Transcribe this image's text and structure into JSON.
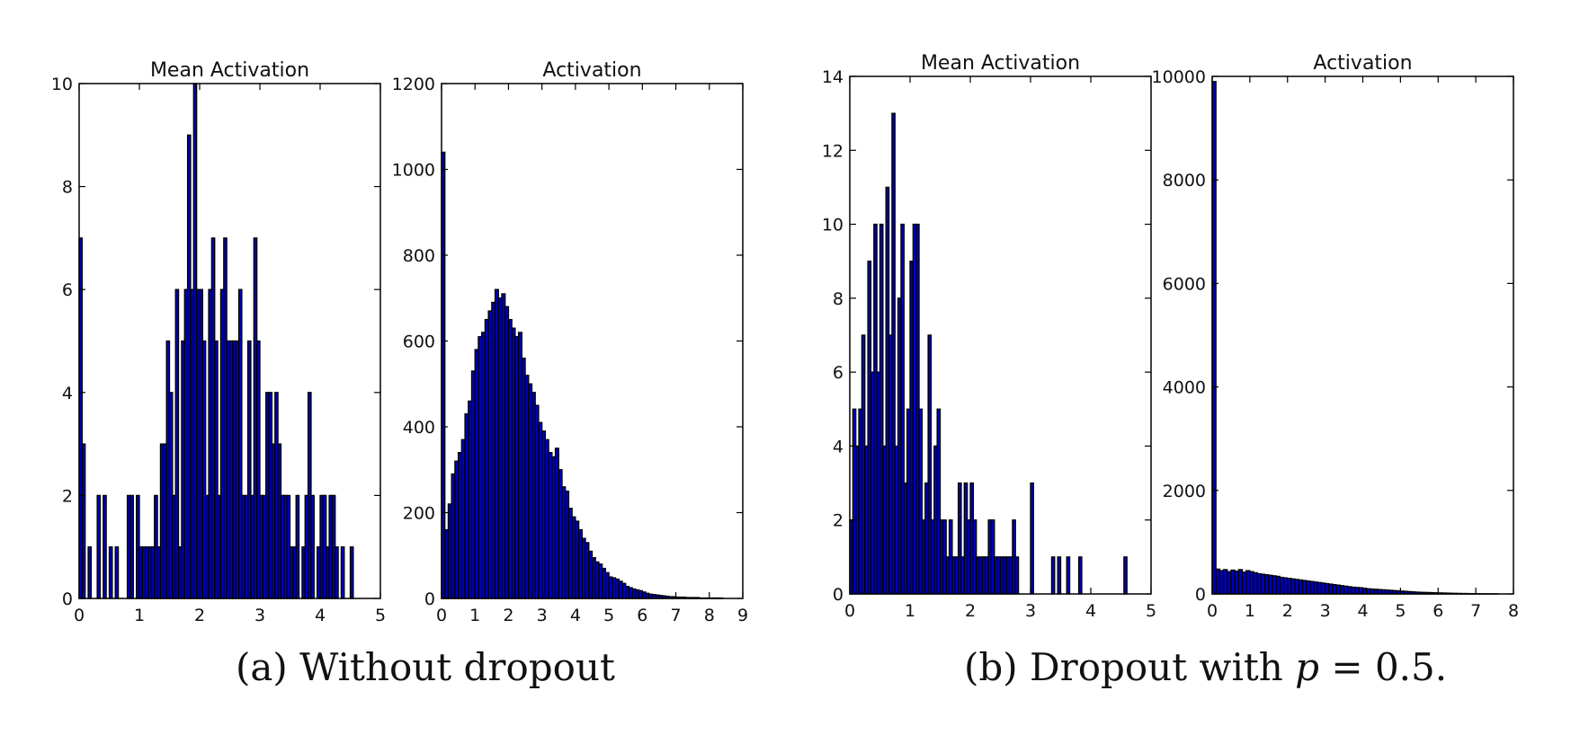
{
  "captions": {
    "a": "(a) Without dropout",
    "b_prefix": "(b) Dropout with ",
    "b_var": "p",
    "b_suffix": " = 0.5."
  },
  "colors": {
    "bar_fill": "#0000b8",
    "bar_edge": "#000000",
    "axes": "#000000"
  },
  "chart_data": [
    {
      "type": "bar",
      "title": "Mean Activation",
      "xlim": [
        0,
        5
      ],
      "ylim": [
        0,
        10
      ],
      "xticks": [
        0,
        1,
        2,
        3,
        4,
        5
      ],
      "yticks": [
        0,
        2,
        4,
        6,
        8,
        10
      ],
      "bin_width": 0.05,
      "x": [
        0.0,
        0.05,
        0.15,
        0.3,
        0.4,
        0.5,
        0.6,
        0.8,
        0.85,
        0.95,
        1.0,
        1.05,
        1.1,
        1.15,
        1.2,
        1.25,
        1.3,
        1.35,
        1.4,
        1.45,
        1.5,
        1.55,
        1.6,
        1.65,
        1.7,
        1.75,
        1.8,
        1.85,
        1.9,
        1.95,
        2.0,
        2.05,
        2.1,
        2.15,
        2.2,
        2.25,
        2.3,
        2.35,
        2.4,
        2.45,
        2.5,
        2.55,
        2.6,
        2.65,
        2.7,
        2.75,
        2.8,
        2.85,
        2.9,
        2.95,
        3.0,
        3.05,
        3.1,
        3.15,
        3.2,
        3.25,
        3.3,
        3.35,
        3.4,
        3.45,
        3.5,
        3.55,
        3.6,
        3.7,
        3.75,
        3.8,
        3.85,
        3.95,
        4.0,
        4.05,
        4.1,
        4.15,
        4.2,
        4.25,
        4.35,
        4.5
      ],
      "values": [
        7,
        3,
        1,
        2,
        2,
        1,
        1,
        2,
        2,
        2,
        1,
        1,
        1,
        1,
        1,
        2,
        1,
        3,
        3,
        5,
        4,
        2,
        6,
        1,
        5,
        6,
        9,
        6,
        10,
        6,
        6,
        5,
        2,
        6,
        7,
        5,
        2,
        6,
        7,
        5,
        5,
        5,
        5,
        6,
        2,
        2,
        5,
        2,
        7,
        5,
        2,
        2,
        4,
        4,
        3,
        4,
        3,
        2,
        2,
        2,
        1,
        1,
        2,
        1,
        2,
        4,
        2,
        1,
        2,
        2,
        1,
        2,
        2,
        1,
        1,
        1
      ]
    },
    {
      "type": "bar",
      "title": "Activation",
      "xlim": [
        0,
        9
      ],
      "ylim": [
        0,
        1200
      ],
      "xticks": [
        0,
        1,
        2,
        3,
        4,
        5,
        6,
        7,
        8,
        9
      ],
      "yticks": [
        0,
        200,
        400,
        600,
        800,
        1000,
        1200
      ],
      "bin_width": 0.1,
      "x": [
        0.0,
        0.1,
        0.2,
        0.3,
        0.4,
        0.5,
        0.6,
        0.7,
        0.8,
        0.9,
        1.0,
        1.1,
        1.2,
        1.3,
        1.4,
        1.5,
        1.6,
        1.7,
        1.8,
        1.9,
        2.0,
        2.1,
        2.2,
        2.3,
        2.4,
        2.5,
        2.6,
        2.7,
        2.8,
        2.9,
        3.0,
        3.1,
        3.2,
        3.3,
        3.4,
        3.5,
        3.6,
        3.7,
        3.8,
        3.9,
        4.0,
        4.1,
        4.2,
        4.3,
        4.4,
        4.5,
        4.6,
        4.7,
        4.8,
        4.9,
        5.0,
        5.1,
        5.2,
        5.3,
        5.4,
        5.5,
        5.6,
        5.7,
        5.8,
        5.9,
        6.0,
        6.1,
        6.2,
        6.3,
        6.4,
        6.5,
        6.6,
        6.7,
        6.8,
        6.9,
        7.0,
        7.1,
        7.2,
        7.3,
        7.4,
        7.5,
        7.6,
        7.7,
        7.8,
        7.9,
        8.0,
        8.1,
        8.2,
        8.3
      ],
      "values": [
        1040,
        160,
        220,
        290,
        320,
        340,
        370,
        430,
        460,
        530,
        580,
        610,
        620,
        650,
        670,
        690,
        720,
        700,
        710,
        680,
        650,
        630,
        610,
        620,
        560,
        520,
        500,
        480,
        450,
        410,
        390,
        370,
        340,
        330,
        350,
        300,
        260,
        250,
        210,
        190,
        180,
        160,
        140,
        130,
        110,
        95,
        85,
        80,
        70,
        60,
        50,
        48,
        45,
        40,
        35,
        28,
        25,
        22,
        20,
        18,
        15,
        12,
        10,
        9,
        8,
        7,
        6,
        5,
        4,
        4,
        3,
        3,
        3,
        2,
        2,
        2,
        2,
        1,
        1,
        1,
        1,
        1,
        1,
        1
      ]
    },
    {
      "type": "bar",
      "title": "Mean Activation",
      "xlim": [
        0,
        5
      ],
      "ylim": [
        0,
        14
      ],
      "xticks": [
        0,
        1,
        2,
        3,
        4,
        5
      ],
      "yticks": [
        0,
        2,
        4,
        6,
        8,
        10,
        12,
        14
      ],
      "bin_width": 0.05,
      "x": [
        0.0,
        0.05,
        0.1,
        0.15,
        0.2,
        0.25,
        0.3,
        0.35,
        0.4,
        0.45,
        0.5,
        0.55,
        0.6,
        0.65,
        0.7,
        0.75,
        0.8,
        0.85,
        0.9,
        0.95,
        1.0,
        1.05,
        1.1,
        1.15,
        1.2,
        1.25,
        1.3,
        1.35,
        1.4,
        1.45,
        1.5,
        1.55,
        1.6,
        1.65,
        1.7,
        1.75,
        1.8,
        1.85,
        1.9,
        1.95,
        2.0,
        2.05,
        2.1,
        2.15,
        2.2,
        2.25,
        2.3,
        2.35,
        2.4,
        2.45,
        2.5,
        2.55,
        2.6,
        2.65,
        2.7,
        2.75,
        3.0,
        3.35,
        3.45,
        3.6,
        3.8,
        4.55
      ],
      "values": [
        2,
        5,
        4,
        5,
        7,
        4,
        9,
        6,
        10,
        6,
        10,
        4,
        11,
        7,
        13,
        4,
        8,
        10,
        3,
        5,
        9,
        10,
        10,
        5,
        2,
        3,
        7,
        2,
        4,
        5,
        2,
        2,
        1,
        2,
        1,
        1,
        3,
        1,
        3,
        2,
        3,
        2,
        1,
        1,
        1,
        1,
        2,
        2,
        1,
        1,
        1,
        1,
        1,
        1,
        2,
        1,
        3,
        1,
        1,
        1,
        1,
        1
      ]
    },
    {
      "type": "bar",
      "title": "Activation",
      "xlim": [
        0,
        8
      ],
      "ylim": [
        0,
        10000
      ],
      "xticks": [
        0,
        1,
        2,
        3,
        4,
        5,
        6,
        7,
        8
      ],
      "yticks": [
        0,
        2000,
        4000,
        6000,
        8000,
        10000
      ],
      "bin_width": 0.1,
      "x": [
        0.0,
        0.1,
        0.2,
        0.3,
        0.4,
        0.5,
        0.6,
        0.7,
        0.8,
        0.9,
        1.0,
        1.1,
        1.2,
        1.3,
        1.4,
        1.5,
        1.6,
        1.7,
        1.8,
        1.9,
        2.0,
        2.1,
        2.2,
        2.3,
        2.4,
        2.5,
        2.6,
        2.7,
        2.8,
        2.9,
        3.0,
        3.1,
        3.2,
        3.3,
        3.4,
        3.5,
        3.6,
        3.7,
        3.8,
        3.9,
        4.0,
        4.1,
        4.2,
        4.3,
        4.4,
        4.5,
        4.6,
        4.7,
        4.8,
        4.9,
        5.0,
        5.1,
        5.2,
        5.3,
        5.4,
        5.5,
        5.6,
        5.7,
        5.8,
        5.9,
        6.0,
        6.1,
        6.2,
        6.3,
        6.4,
        6.5,
        6.6,
        6.7,
        6.8,
        6.9,
        7.0,
        7.1,
        7.2,
        7.3,
        7.4,
        7.5
      ],
      "values": [
        9900,
        480,
        450,
        470,
        430,
        460,
        440,
        470,
        420,
        450,
        430,
        410,
        390,
        380,
        370,
        360,
        350,
        340,
        320,
        310,
        300,
        290,
        280,
        270,
        260,
        250,
        240,
        230,
        220,
        210,
        200,
        190,
        180,
        170,
        160,
        150,
        140,
        130,
        125,
        120,
        110,
        100,
        95,
        90,
        85,
        80,
        75,
        70,
        65,
        60,
        55,
        50,
        45,
        40,
        35,
        32,
        30,
        27,
        25,
        22,
        20,
        18,
        16,
        14,
        12,
        10,
        9,
        8,
        7,
        6,
        5,
        4,
        3,
        3,
        2,
        2
      ]
    }
  ]
}
